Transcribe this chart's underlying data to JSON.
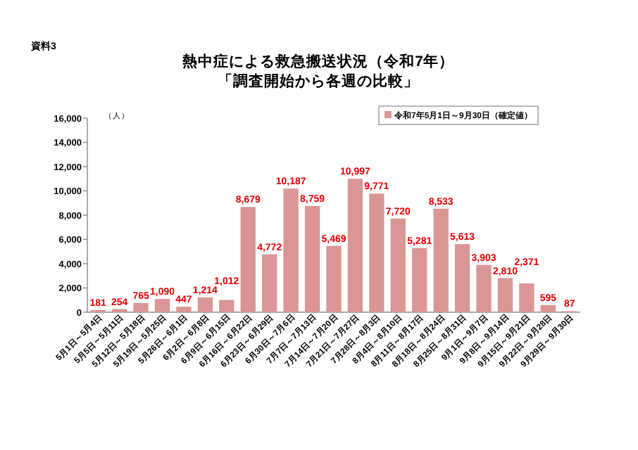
{
  "chart_data": {
    "type": "bar",
    "title": "熱中症による救急搬送状況（令和7年）",
    "subtitle": "「調査開始から各週の比較」",
    "ylabel": "（人）",
    "annotations": [
      "資料3"
    ],
    "categories": [
      "5月1日～5月4日",
      "5月5日～5月11日",
      "5月12日～5月18日",
      "5月19日～5月25日",
      "5月26日～6月1日",
      "6月2日～6月8日",
      "6月9日～6月15日",
      "6月16日～6月22日",
      "6月23日～6月29日",
      "6月30日～7月6日",
      "7月7日～7月13日",
      "7月14日～7月20日",
      "7月21日～7月27日",
      "7月28日～8月3日",
      "8月4日～8月10日",
      "8月11日～8月17日",
      "8月18日～8月24日",
      "8月25日～8月31日",
      "9月1日～9月7日",
      "9月8日～9月14日",
      "9月15日～9月21日",
      "9月22日～9月28日",
      "9月29日～9月30日"
    ],
    "series": [
      {
        "name": "令和7年5月1日～9月30日（確定値）",
        "color": "#d99694",
        "values": [
          181,
          254,
          765,
          1090,
          447,
          1214,
          1012,
          8679,
          4772,
          10187,
          8759,
          5469,
          10997,
          9771,
          7720,
          5281,
          8533,
          5613,
          3903,
          2810,
          2371,
          595,
          87
        ],
        "value_labels": [
          "181",
          "254",
          "765",
          "1,090",
          "447",
          "1,214",
          "1,012",
          "8,679",
          "4,772",
          "10,187",
          "8,759",
          "5,469",
          "10,997",
          "9,771",
          "7,720",
          "5,281",
          "8,533",
          "5,613",
          "3,903",
          "2,810",
          "2,371",
          "595",
          "87"
        ]
      }
    ],
    "ylim": [
      0,
      16000
    ],
    "yticks": [
      {
        "value": 0,
        "label": "0"
      },
      {
        "value": 2000,
        "label": "2,000"
      },
      {
        "value": 4000,
        "label": "4,000"
      },
      {
        "value": 6000,
        "label": "6,000"
      },
      {
        "value": 8000,
        "label": "8,000"
      },
      {
        "value": 10000,
        "label": "10,000"
      },
      {
        "value": 12000,
        "label": "12,000"
      },
      {
        "value": 14000,
        "label": "14,000"
      },
      {
        "value": 16000,
        "label": "16,000"
      }
    ],
    "legend": "top right"
  }
}
